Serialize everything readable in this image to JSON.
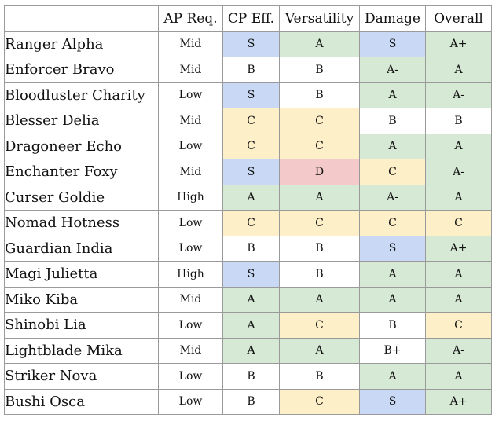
{
  "table": {
    "headers": [
      "",
      "AP Req.",
      "CP Eff.",
      "Versatility",
      "Damage",
      "Overall"
    ],
    "grade_colors": {
      "S": "#c9d9f5",
      "A+": "#d6e9d4",
      "A": "#d6e9d4",
      "A-": "#d6e9d4",
      "B+": "#ffffff",
      "B": "#ffffff",
      "C": "#fdefc8",
      "D": "#f3c9c9"
    },
    "rows": [
      {
        "name": "Ranger Alpha",
        "ap": "Mid",
        "cp": "S",
        "versatility": "A",
        "damage": "S",
        "overall": "A+"
      },
      {
        "name": "Enforcer Bravo",
        "ap": "Mid",
        "cp": "B",
        "versatility": "B",
        "damage": "A-",
        "overall": "A"
      },
      {
        "name": "Bloodluster Charity",
        "ap": "Low",
        "cp": "S",
        "versatility": "B",
        "damage": "A",
        "overall": "A-"
      },
      {
        "name": "Blesser Delia",
        "ap": "Mid",
        "cp": "C",
        "versatility": "C",
        "damage": "B",
        "overall": "B"
      },
      {
        "name": "Dragoneer Echo",
        "ap": "Low",
        "cp": "C",
        "versatility": "C",
        "damage": "A",
        "overall": "A"
      },
      {
        "name": "Enchanter Foxy",
        "ap": "Mid",
        "cp": "S",
        "versatility": "D",
        "damage": "C",
        "overall": "A-"
      },
      {
        "name": "Curser Goldie",
        "ap": "High",
        "cp": "A",
        "versatility": "A",
        "damage": "A-",
        "overall": "A"
      },
      {
        "name": "Nomad Hotness",
        "ap": "Low",
        "cp": "C",
        "versatility": "C",
        "damage": "C",
        "overall": "C"
      },
      {
        "name": "Guardian India",
        "ap": "Low",
        "cp": "B",
        "versatility": "B",
        "damage": "S",
        "overall": "A+"
      },
      {
        "name": "Magi Julietta",
        "ap": "High",
        "cp": "S",
        "versatility": "B",
        "damage": "A",
        "overall": "A"
      },
      {
        "name": "Miko Kiba",
        "ap": "Mid",
        "cp": "A",
        "versatility": "A",
        "damage": "A",
        "overall": "A"
      },
      {
        "name": "Shinobi Lia",
        "ap": "Low",
        "cp": "A",
        "versatility": "C",
        "damage": "B",
        "overall": "C"
      },
      {
        "name": "Lightblade Mika",
        "ap": "Mid",
        "cp": "A",
        "versatility": "A",
        "damage": "B+",
        "overall": "A-"
      },
      {
        "name": "Striker Nova",
        "ap": "Low",
        "cp": "B",
        "versatility": "B",
        "damage": "A",
        "overall": "A"
      },
      {
        "name": "Bushi Osca",
        "ap": "Low",
        "cp": "B",
        "versatility": "C",
        "damage": "S",
        "overall": "A+"
      }
    ]
  }
}
